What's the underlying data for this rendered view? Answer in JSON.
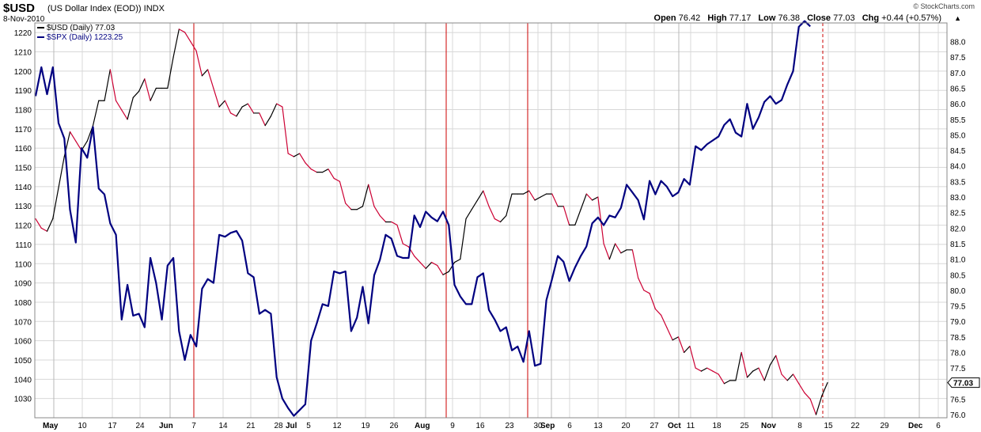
{
  "header": {
    "symbol": "$USD",
    "name": "(US Dollar Index (EOD))",
    "exchange": "INDX",
    "date": "8-Nov-2010",
    "brand": "© StockCharts.com",
    "ohlc": {
      "open_label": "Open",
      "open": "76.42",
      "high_label": "High",
      "high": "77.17",
      "low_label": "Low",
      "low": "76.38",
      "close_label": "Close",
      "close": "77.03",
      "chg_label": "Chg",
      "chg": "+0.44 (+0.57%)"
    }
  },
  "colors": {
    "usd_up": "#000000",
    "usd_down": "#cc0033",
    "spx": "#000080",
    "grid": "#d8d8d8",
    "marker": "#cc0000"
  },
  "chart_data": {
    "type": "line",
    "legend": [
      {
        "label": "$USD (Daily) 77.03",
        "color": "#000000"
      },
      {
        "label": "$SPX (Daily) 1223.25",
        "color": "#000080"
      }
    ],
    "legend_position": "top-left",
    "grid": true,
    "left_axis": {
      "label": "$SPX",
      "range": [
        1020,
        1225
      ],
      "ticks": [
        1030,
        1040,
        1050,
        1060,
        1070,
        1080,
        1090,
        1100,
        1110,
        1120,
        1130,
        1140,
        1150,
        1160,
        1170,
        1180,
        1190,
        1200,
        1210,
        1220
      ]
    },
    "right_axis": {
      "label": "$USD",
      "range": [
        75.9,
        88.6
      ],
      "ticks": [
        "76.0",
        "76.5",
        "77.0",
        "77.5",
        "78.0",
        "78.5",
        "79.0",
        "79.5",
        "80.0",
        "80.5",
        "81.0",
        "81.5",
        "82.0",
        "82.5",
        "83.0",
        "83.5",
        "84.0",
        "84.5",
        "85.0",
        "85.5",
        "86.0",
        "86.5",
        "87.0",
        "87.5",
        "88.0"
      ]
    },
    "x_ticks": [
      {
        "label": "May",
        "bold": true
      },
      {
        "label": "10"
      },
      {
        "label": "17"
      },
      {
        "label": "24"
      },
      {
        "label": "Jun",
        "bold": true
      },
      {
        "label": "7"
      },
      {
        "label": "14"
      },
      {
        "label": "21"
      },
      {
        "label": "28"
      },
      {
        "label": "Jul",
        "bold": true
      },
      {
        "label": "5"
      },
      {
        "label": "12"
      },
      {
        "label": "19"
      },
      {
        "label": "26"
      },
      {
        "label": "Aug",
        "bold": true
      },
      {
        "label": "9"
      },
      {
        "label": "16"
      },
      {
        "label": "23"
      },
      {
        "label": "30"
      },
      {
        "label": "Sep",
        "bold": true
      },
      {
        "label": "6"
      },
      {
        "label": "13"
      },
      {
        "label": "20"
      },
      {
        "label": "27"
      },
      {
        "label": "Oct",
        "bold": true
      },
      {
        "label": "11"
      },
      {
        "label": "18"
      },
      {
        "label": "25"
      },
      {
        "label": "Nov",
        "bold": true
      },
      {
        "label": "8"
      },
      {
        "label": "15"
      },
      {
        "label": "22"
      },
      {
        "label": "29"
      },
      {
        "label": "Dec",
        "bold": true
      },
      {
        "label": "6"
      }
    ],
    "markers": [
      {
        "date": "Jun 7",
        "style": "solid"
      },
      {
        "date": "Aug 6",
        "style": "solid"
      },
      {
        "date": "Aug 27",
        "style": "solid"
      },
      {
        "date": "Nov 5",
        "style": "dashed"
      }
    ],
    "last_value_labels": {
      "spx": "1223.25",
      "usd": "77.03"
    },
    "series": [
      {
        "name": "$USD (Daily) 77.03",
        "axis": "right",
        "values": [
          82.3,
          82.0,
          81.9,
          82.3,
          83.3,
          84.3,
          85.1,
          84.8,
          84.5,
          84.8,
          85.3,
          86.1,
          86.1,
          87.1,
          86.1,
          85.8,
          85.5,
          86.2,
          86.4,
          86.8,
          86.1,
          86.5,
          86.5,
          86.5,
          87.5,
          88.4,
          88.3,
          88.0,
          87.7,
          86.9,
          87.1,
          86.5,
          85.9,
          86.1,
          85.7,
          85.6,
          85.9,
          86.0,
          85.7,
          85.7,
          85.3,
          85.6,
          86.0,
          85.9,
          84.4,
          84.3,
          84.4,
          84.1,
          83.9,
          83.8,
          83.8,
          83.9,
          83.6,
          83.5,
          82.8,
          82.6,
          82.6,
          82.7,
          83.4,
          82.7,
          82.4,
          82.2,
          82.2,
          82.1,
          81.5,
          81.4,
          81.1,
          80.9,
          80.7,
          80.9,
          80.8,
          80.5,
          80.6,
          80.9,
          81.0,
          82.3,
          82.6,
          82.9,
          83.2,
          82.7,
          82.3,
          82.2,
          82.4,
          83.1,
          83.1,
          83.1,
          83.2,
          82.9,
          83.0,
          83.1,
          83.1,
          82.7,
          82.7,
          82.1,
          82.1,
          82.6,
          83.1,
          82.9,
          83.0,
          81.5,
          81.0,
          81.5,
          81.2,
          81.3,
          81.3,
          80.4,
          80.0,
          79.9,
          79.4,
          79.2,
          78.8,
          78.4,
          78.5,
          78.0,
          78.2,
          77.5,
          77.4,
          77.5,
          77.4,
          77.3,
          77.0,
          77.1,
          77.1,
          78.0,
          77.2,
          77.4,
          77.5,
          77.1,
          77.6,
          77.9,
          77.3,
          77.1,
          77.3,
          77.0,
          76.7,
          76.5,
          76.0,
          76.6,
          77.03
        ]
      },
      {
        "name": "$SPX (Daily) 1223.25",
        "axis": "left",
        "values": [
          1187,
          1202,
          1188,
          1202,
          1173,
          1165,
          1128,
          1111,
          1160,
          1155,
          1171,
          1139,
          1136,
          1121,
          1115,
          1071,
          1089,
          1073,
          1074,
          1067,
          1103,
          1090,
          1071,
          1099,
          1103,
          1065,
          1050,
          1063,
          1057,
          1087,
          1092,
          1090,
          1115,
          1114,
          1116,
          1117,
          1112,
          1095,
          1093,
          1074,
          1076,
          1074,
          1041,
          1030,
          1025,
          1021,
          1024,
          1027,
          1060,
          1069,
          1079,
          1078,
          1096,
          1095,
          1096,
          1065,
          1072,
          1088,
          1069,
          1094,
          1102,
          1115,
          1113,
          1104,
          1103,
          1103,
          1125,
          1119,
          1127,
          1124,
          1122,
          1127,
          1120,
          1089,
          1083,
          1079,
          1079,
          1093,
          1095,
          1076,
          1071,
          1065,
          1067,
          1055,
          1057,
          1049,
          1065,
          1047,
          1048,
          1081,
          1092,
          1104,
          1101,
          1091,
          1098,
          1104,
          1109,
          1121,
          1124,
          1120,
          1125,
          1124,
          1129,
          1141,
          1137,
          1133,
          1123,
          1143,
          1136,
          1143,
          1140,
          1135,
          1137,
          1144,
          1141,
          1161,
          1159,
          1162,
          1164,
          1166,
          1172,
          1175,
          1168,
          1166,
          1183,
          1170,
          1176,
          1184,
          1187,
          1183,
          1185,
          1193,
          1200,
          1223,
          1226,
          1223.25
        ]
      }
    ]
  }
}
